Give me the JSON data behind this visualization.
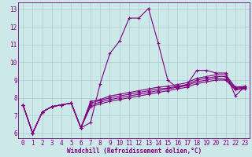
{
  "xlabel": "Windchill (Refroidissement éolien,°C)",
  "background_color": "#cce8e8",
  "grid_color": "#aacfcf",
  "line_color": "#800080",
  "xlim": [
    -0.5,
    23.5
  ],
  "ylim": [
    5.7,
    13.4
  ],
  "xticks": [
    0,
    1,
    2,
    3,
    4,
    5,
    6,
    7,
    8,
    9,
    10,
    11,
    12,
    13,
    14,
    15,
    16,
    17,
    18,
    19,
    20,
    21,
    22,
    23
  ],
  "yticks": [
    6,
    7,
    8,
    9,
    10,
    11,
    12,
    13
  ],
  "series": [
    [
      7.6,
      6.0,
      7.2,
      7.5,
      7.6,
      7.7,
      6.3,
      6.6,
      8.8,
      10.5,
      11.2,
      12.5,
      12.5,
      13.05,
      11.1,
      9.0,
      8.55,
      8.75,
      9.55,
      9.55,
      9.4,
      9.4,
      8.1,
      8.65
    ],
    [
      7.6,
      6.0,
      7.2,
      7.5,
      7.6,
      7.7,
      6.3,
      7.8,
      7.9,
      8.1,
      8.2,
      8.3,
      8.4,
      8.5,
      8.6,
      8.65,
      8.75,
      8.85,
      9.1,
      9.2,
      9.3,
      9.3,
      8.6,
      8.65
    ],
    [
      7.6,
      6.0,
      7.2,
      7.5,
      7.6,
      7.7,
      6.3,
      7.6,
      7.75,
      7.9,
      8.0,
      8.1,
      8.2,
      8.3,
      8.4,
      8.5,
      8.6,
      8.7,
      8.9,
      9.0,
      9.1,
      9.05,
      8.5,
      8.55
    ],
    [
      7.6,
      6.0,
      7.2,
      7.5,
      7.6,
      7.7,
      6.3,
      7.7,
      7.85,
      8.0,
      8.1,
      8.2,
      8.3,
      8.4,
      8.5,
      8.55,
      8.65,
      8.75,
      9.0,
      9.1,
      9.2,
      9.2,
      8.55,
      8.6
    ],
    [
      7.6,
      6.0,
      7.2,
      7.5,
      7.6,
      7.7,
      6.3,
      7.5,
      7.65,
      7.8,
      7.9,
      8.0,
      8.1,
      8.2,
      8.3,
      8.4,
      8.5,
      8.6,
      8.8,
      8.9,
      9.0,
      9.0,
      8.45,
      8.5
    ]
  ],
  "marker": "+",
  "markersize": 3.5,
  "linewidth": 0.8
}
